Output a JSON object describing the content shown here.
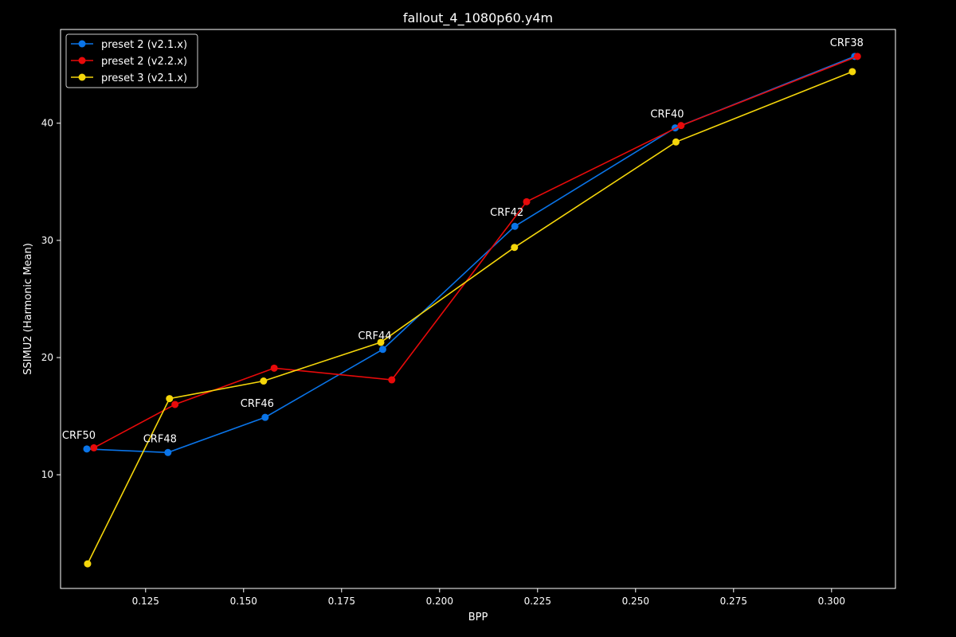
{
  "colors": {
    "background": "#000000",
    "foreground": "#ffffff"
  },
  "chart_data": {
    "type": "line",
    "title": "fallout_4_1080p60.y4m",
    "xlabel": "BPP",
    "ylabel": "SSIMU2 (Harmonic Mean)",
    "xlim": [
      0.1033,
      0.3163
    ],
    "ylim": [
      0.3,
      48.0
    ],
    "xticks": [
      {
        "value": 0.125,
        "label": "0.125"
      },
      {
        "value": 0.15,
        "label": "0.150"
      },
      {
        "value": 0.175,
        "label": "0.175"
      },
      {
        "value": 0.2,
        "label": "0.200"
      },
      {
        "value": 0.225,
        "label": "0.225"
      },
      {
        "value": 0.25,
        "label": "0.250"
      },
      {
        "value": 0.275,
        "label": "0.275"
      },
      {
        "value": 0.3,
        "label": "0.300"
      }
    ],
    "yticks": [
      {
        "value": 10,
        "label": "10"
      },
      {
        "value": 20,
        "label": "20"
      },
      {
        "value": 30,
        "label": "30"
      },
      {
        "value": 40,
        "label": "40"
      }
    ],
    "grid": false,
    "legend_position": "top-left",
    "series": [
      {
        "name": "preset 2 (v2.1.x)",
        "color": "#0a74e8",
        "points": [
          {
            "x": 0.11,
            "y": 12.2
          },
          {
            "x": 0.1307,
            "y": 11.9
          },
          {
            "x": 0.1555,
            "y": 14.9
          },
          {
            "x": 0.1855,
            "y": 20.7
          },
          {
            "x": 0.2192,
            "y": 31.2
          },
          {
            "x": 0.2601,
            "y": 39.6
          },
          {
            "x": 0.3059,
            "y": 45.7
          }
        ]
      },
      {
        "name": "preset 2 (v2.2.x)",
        "color": "#e80a0a",
        "points": [
          {
            "x": 0.1118,
            "y": 12.3
          },
          {
            "x": 0.1325,
            "y": 16.0
          },
          {
            "x": 0.1578,
            "y": 19.1
          },
          {
            "x": 0.1878,
            "y": 18.1
          },
          {
            "x": 0.2222,
            "y": 33.3
          },
          {
            "x": 0.2616,
            "y": 39.8
          },
          {
            "x": 0.3066,
            "y": 45.7
          }
        ]
      },
      {
        "name": "preset 3 (v2.1.x)",
        "color": "#f5d60a",
        "points": [
          {
            "x": 0.1102,
            "y": 2.4
          },
          {
            "x": 0.1311,
            "y": 16.5
          },
          {
            "x": 0.1551,
            "y": 18.0
          },
          {
            "x": 0.185,
            "y": 21.3
          },
          {
            "x": 0.2191,
            "y": 29.4
          },
          {
            "x": 0.2603,
            "y": 38.4
          },
          {
            "x": 0.3053,
            "y": 44.4
          }
        ]
      }
    ],
    "annotations": [
      {
        "text": "CRF50",
        "x": 0.11,
        "y": 12.2
      },
      {
        "text": "CRF48",
        "x": 0.1307,
        "y": 11.9
      },
      {
        "text": "CRF46",
        "x": 0.1555,
        "y": 14.9
      },
      {
        "text": "CRF44",
        "x": 0.1855,
        "y": 20.7
      },
      {
        "text": "CRF42",
        "x": 0.2192,
        "y": 31.2
      },
      {
        "text": "CRF40",
        "x": 0.2601,
        "y": 39.6
      },
      {
        "text": "CRF38",
        "x": 0.3059,
        "y": 45.7
      }
    ]
  }
}
